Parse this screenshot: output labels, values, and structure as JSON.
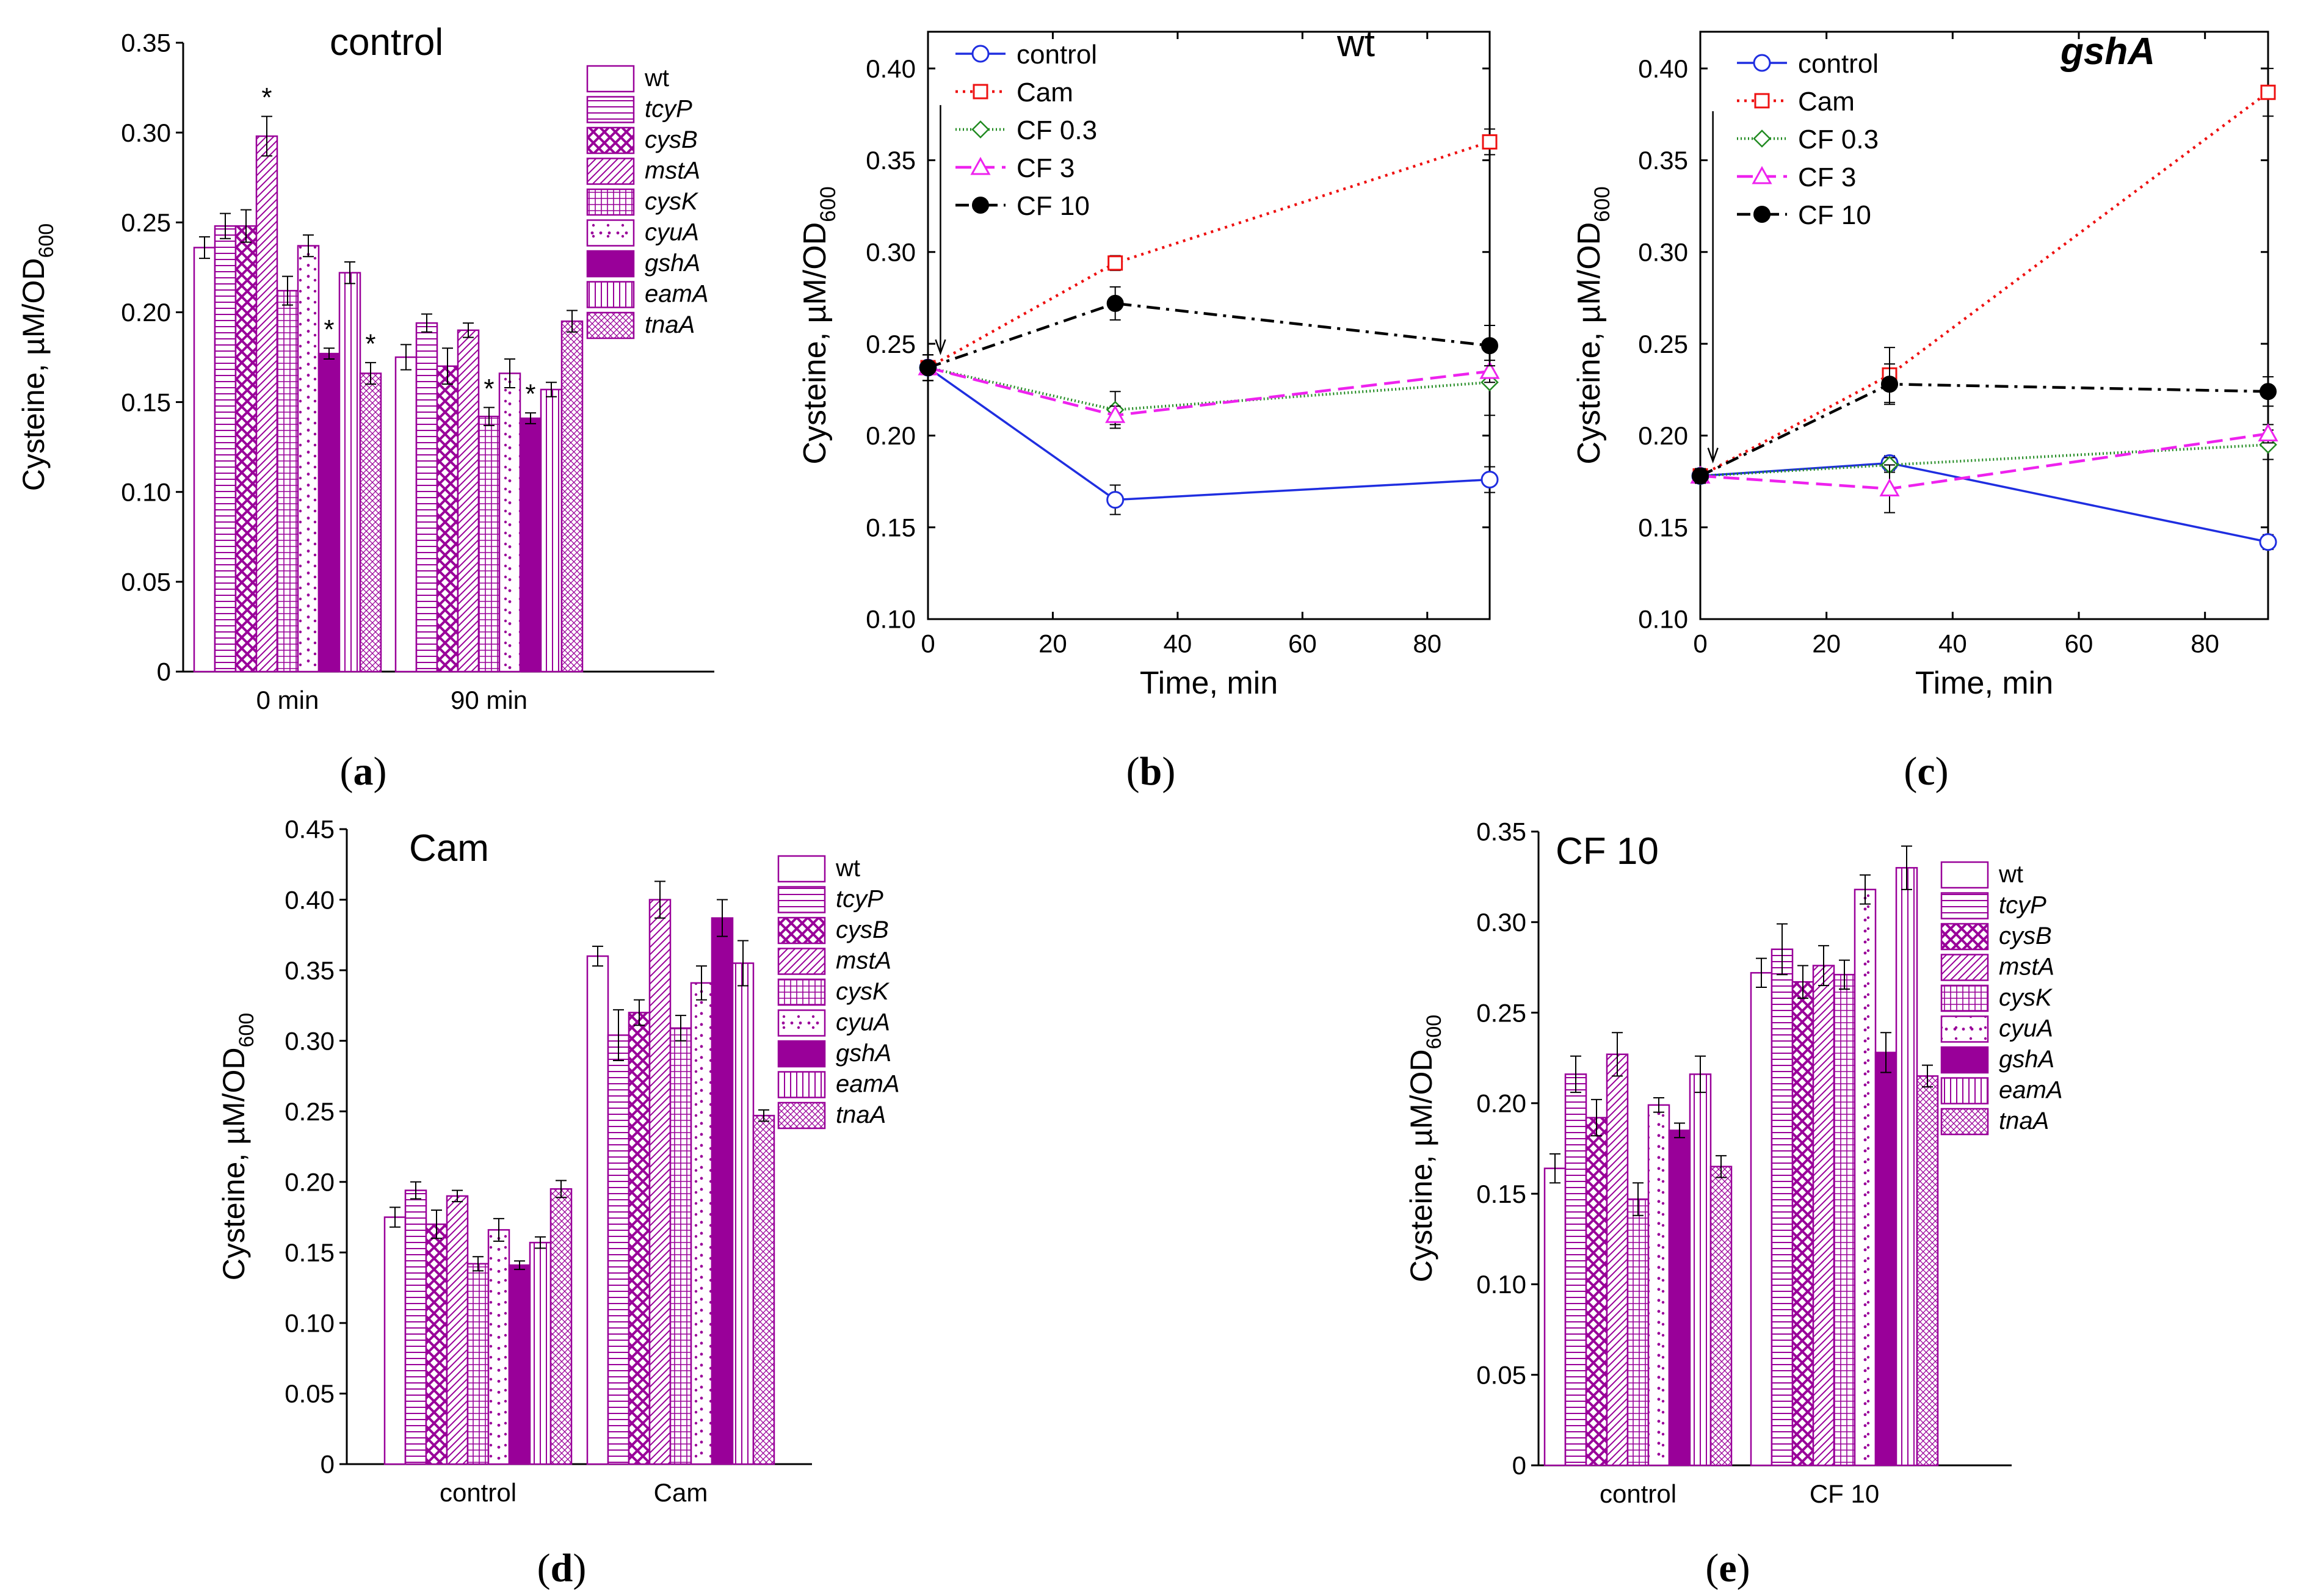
{
  "colors": {
    "bar_purple": "#990099",
    "control": "#1f2ee0",
    "cam": "#ee1111",
    "cf03": "#228b22",
    "cf3": "#ee22ee",
    "cf10": "#000000"
  },
  "panel_labels": [
    "(a)",
    "(b)",
    "(c)",
    "(d)",
    "(e)"
  ],
  "ylabel_prefix": "Cysteine, µM/OD",
  "ylabel_sub": "600",
  "chart_data": [
    {
      "id": "a",
      "type": "bar",
      "title": "control",
      "categories": [
        "0 min",
        "90 min"
      ],
      "series": [
        {
          "name": "wt",
          "pattern": "empty",
          "values": [
            0.236,
            0.175
          ],
          "errors": [
            0.006,
            0.007
          ]
        },
        {
          "name": "tcyP",
          "pattern": "hlines",
          "values": [
            0.248,
            0.194
          ],
          "errors": [
            0.007,
            0.005
          ]
        },
        {
          "name": "cysB",
          "pattern": "cross",
          "values": [
            0.248,
            0.17
          ],
          "errors": [
            0.009,
            0.01
          ]
        },
        {
          "name": "mstA",
          "pattern": "diag",
          "values": [
            0.298,
            0.19
          ],
          "errors": [
            0.011,
            0.004
          ]
        },
        {
          "name": "cysK",
          "pattern": "grid",
          "values": [
            0.212,
            0.142
          ],
          "errors": [
            0.008,
            0.005
          ]
        },
        {
          "name": "cyuA",
          "pattern": "dots",
          "values": [
            0.237,
            0.166
          ],
          "errors": [
            0.006,
            0.008
          ]
        },
        {
          "name": "gshA",
          "pattern": "solid",
          "values": [
            0.177,
            0.141
          ],
          "errors": [
            0.003,
            0.003
          ]
        },
        {
          "name": "eamA",
          "pattern": "vlines",
          "values": [
            0.222,
            0.157
          ],
          "errors": [
            0.006,
            0.004
          ]
        },
        {
          "name": "tnaA",
          "pattern": "weave",
          "values": [
            0.166,
            0.195
          ],
          "errors": [
            0.006,
            0.006
          ]
        }
      ],
      "annotations": [
        {
          "text": "*",
          "category": 0,
          "series": 3
        },
        {
          "text": "*",
          "category": 0,
          "series": 6
        },
        {
          "text": "*",
          "category": 0,
          "series": 8
        },
        {
          "text": "*",
          "category": 1,
          "series": 4
        },
        {
          "text": "*",
          "category": 1,
          "series": 6
        }
      ],
      "ylim": [
        0,
        0.35
      ],
      "yticks": [
        "0",
        "0.05",
        "0.10",
        "0.15",
        "0.20",
        "0.25",
        "0.30",
        "0.35"
      ],
      "ylabel": "Cysteine, µM/OD600",
      "legend": "top-right"
    },
    {
      "id": "b",
      "type": "line",
      "title": "wt",
      "x": [
        0,
        30,
        90
      ],
      "series": [
        {
          "name": "control",
          "marker": "circle-open",
          "style": "solid",
          "values": [
            0.237,
            0.165,
            0.176
          ],
          "errors": [
            0.007,
            0.008,
            0.007
          ]
        },
        {
          "name": "Cam",
          "marker": "square-open",
          "style": "dotted",
          "values": [
            0.237,
            0.294,
            0.36
          ],
          "errors": [
            0.007,
            0.004,
            0.007
          ]
        },
        {
          "name": "CF 0.3",
          "marker": "diamond-open",
          "style": "fine-dotted",
          "values": [
            0.237,
            0.214,
            0.229
          ],
          "errors": [
            0.007,
            0.01,
            0.018
          ]
        },
        {
          "name": "CF 3",
          "marker": "triangle-open",
          "style": "dashed",
          "values": [
            0.237,
            0.211,
            0.235
          ],
          "errors": [
            0.007,
            0.005,
            0.006
          ]
        },
        {
          "name": "CF 10",
          "marker": "circle-filled",
          "style": "dash-dot",
          "values": [
            0.237,
            0.272,
            0.249
          ],
          "errors": [
            0.007,
            0.009,
            0.011
          ]
        }
      ],
      "xlim": [
        0,
        90
      ],
      "xticks": [
        "0",
        "20",
        "40",
        "60",
        "80"
      ],
      "ylim": [
        0.1,
        0.42
      ],
      "yticks": [
        "0.10",
        "0.15",
        "0.20",
        "0.25",
        "0.30",
        "0.35",
        "0.40"
      ],
      "xlabel": "Time, min",
      "ylabel": "Cysteine, µM/OD600",
      "arrow_x": 2,
      "legend": "top-left"
    },
    {
      "id": "c",
      "type": "line",
      "title": "gshA",
      "x": [
        0,
        30,
        90
      ],
      "series": [
        {
          "name": "control",
          "marker": "circle-open",
          "style": "solid",
          "values": [
            0.178,
            0.185,
            0.142
          ],
          "errors": [
            0.004,
            0.004,
            0.004
          ]
        },
        {
          "name": "Cam",
          "marker": "square-open",
          "style": "dotted",
          "values": [
            0.178,
            0.233,
            0.387
          ],
          "errors": [
            0.004,
            0.015,
            0.013
          ]
        },
        {
          "name": "CF 0.3",
          "marker": "diamond-open",
          "style": "fine-dotted",
          "values": [
            0.178,
            0.184,
            0.195
          ],
          "errors": [
            0.004,
            0.004,
            0.008
          ]
        },
        {
          "name": "CF 3",
          "marker": "triangle-open",
          "style": "dashed",
          "values": [
            0.178,
            0.171,
            0.201
          ],
          "errors": [
            0.004,
            0.013,
            0.005
          ]
        },
        {
          "name": "CF 10",
          "marker": "circle-filled",
          "style": "dash-dot",
          "values": [
            0.178,
            0.228,
            0.224
          ],
          "errors": [
            0.004,
            0.011,
            0.008
          ]
        }
      ],
      "xlim": [
        0,
        90
      ],
      "xticks": [
        "0",
        "20",
        "40",
        "60",
        "80"
      ],
      "ylim": [
        0.1,
        0.42
      ],
      "yticks": [
        "0.10",
        "0.15",
        "0.20",
        "0.25",
        "0.30",
        "0.35",
        "0.40"
      ],
      "xlabel": "Time, min",
      "ylabel": "Cysteine, µM/OD600",
      "arrow_x": 2,
      "legend": "top-left"
    },
    {
      "id": "d",
      "type": "bar",
      "title": "Cam",
      "categories": [
        "control",
        "Cam"
      ],
      "series": [
        {
          "name": "wt",
          "pattern": "empty",
          "values": [
            0.175,
            0.36
          ],
          "errors": [
            0.007,
            0.007
          ]
        },
        {
          "name": "tcyP",
          "pattern": "hlines",
          "values": [
            0.194,
            0.304
          ],
          "errors": [
            0.006,
            0.018
          ]
        },
        {
          "name": "cysB",
          "pattern": "cross",
          "values": [
            0.17,
            0.32
          ],
          "errors": [
            0.01,
            0.009
          ]
        },
        {
          "name": "mstA",
          "pattern": "diag",
          "values": [
            0.19,
            0.4
          ],
          "errors": [
            0.004,
            0.013
          ]
        },
        {
          "name": "cysK",
          "pattern": "grid",
          "values": [
            0.142,
            0.309
          ],
          "errors": [
            0.005,
            0.009
          ]
        },
        {
          "name": "cyuA",
          "pattern": "dots",
          "values": [
            0.166,
            0.341
          ],
          "errors": [
            0.008,
            0.012
          ]
        },
        {
          "name": "gshA",
          "pattern": "solid",
          "values": [
            0.141,
            0.387
          ],
          "errors": [
            0.003,
            0.013
          ]
        },
        {
          "name": "eamA",
          "pattern": "vlines",
          "values": [
            0.157,
            0.355
          ],
          "errors": [
            0.004,
            0.016
          ]
        },
        {
          "name": "tnaA",
          "pattern": "weave",
          "values": [
            0.195,
            0.247
          ],
          "errors": [
            0.006,
            0.004
          ]
        }
      ],
      "ylim": [
        0,
        0.45
      ],
      "yticks": [
        "0",
        "0.05",
        "0.10",
        "0.15",
        "0.20",
        "0.25",
        "0.30",
        "0.35",
        "0.40",
        "0.45"
      ],
      "ylabel": "Cysteine, µM/OD600",
      "legend": "top-right"
    },
    {
      "id": "e",
      "type": "bar",
      "title": "CF 10",
      "categories": [
        "control",
        "CF 10"
      ],
      "series": [
        {
          "name": "wt",
          "pattern": "empty",
          "values": [
            0.164,
            0.272
          ],
          "errors": [
            0.008,
            0.008
          ]
        },
        {
          "name": "tcyP",
          "pattern": "hlines",
          "values": [
            0.216,
            0.285
          ],
          "errors": [
            0.01,
            0.014
          ]
        },
        {
          "name": "cysB",
          "pattern": "cross",
          "values": [
            0.192,
            0.267
          ],
          "errors": [
            0.01,
            0.009
          ]
        },
        {
          "name": "mstA",
          "pattern": "diag",
          "values": [
            0.227,
            0.276
          ],
          "errors": [
            0.012,
            0.011
          ]
        },
        {
          "name": "cysK",
          "pattern": "grid",
          "values": [
            0.147,
            0.271
          ],
          "errors": [
            0.009,
            0.008
          ]
        },
        {
          "name": "cyuA",
          "pattern": "dots",
          "values": [
            0.199,
            0.318
          ],
          "errors": [
            0.004,
            0.008
          ]
        },
        {
          "name": "gshA",
          "pattern": "solid",
          "values": [
            0.185,
            0.228
          ],
          "errors": [
            0.004,
            0.011
          ]
        },
        {
          "name": "eamA",
          "pattern": "vlines",
          "values": [
            0.216,
            0.33
          ],
          "errors": [
            0.01,
            0.012
          ]
        },
        {
          "name": "tnaA",
          "pattern": "weave",
          "values": [
            0.165,
            0.215
          ],
          "errors": [
            0.006,
            0.006
          ]
        }
      ],
      "ylim": [
        0,
        0.35
      ],
      "yticks": [
        "0",
        "0.05",
        "0.10",
        "0.15",
        "0.20",
        "0.25",
        "0.30",
        "0.35"
      ],
      "ylabel": "Cysteine, µM/OD600",
      "legend": "top-right"
    }
  ]
}
